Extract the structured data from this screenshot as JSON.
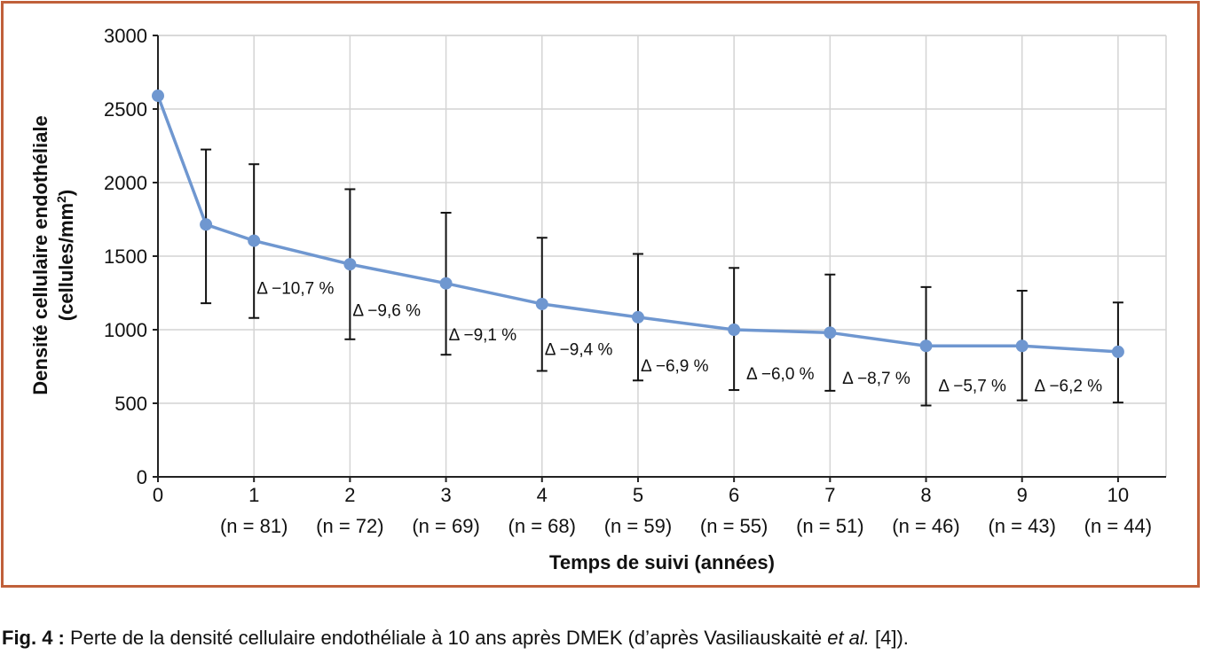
{
  "chart_data": {
    "type": "line",
    "ylabel_line1": "Densité cellulaire endothéliale",
    "ylabel_line2_prefix": "(cellules/mm",
    "ylabel_line2_sup": "2",
    "ylabel_line2_suffix": ")",
    "xlabel": "Temps de suivi (années)",
    "xlim": [
      0,
      10.5
    ],
    "ylim": [
      0,
      3000
    ],
    "yticks": [
      0,
      500,
      1000,
      1500,
      2000,
      2500,
      3000
    ],
    "grid": true,
    "line_color": "#6f97d0",
    "xticks": [
      {
        "x": 0,
        "label": "0",
        "n": ""
      },
      {
        "x": 1,
        "label": "1",
        "n": "(n = 81)"
      },
      {
        "x": 2,
        "label": "2",
        "n": "(n = 72)"
      },
      {
        "x": 3,
        "label": "3",
        "n": "(n = 69)"
      },
      {
        "x": 4,
        "label": "4",
        "n": "(n = 68)"
      },
      {
        "x": 5,
        "label": "5",
        "n": "(n = 59)"
      },
      {
        "x": 6,
        "label": "6",
        "n": "(n = 55)"
      },
      {
        "x": 7,
        "label": "7",
        "n": "(n = 51)"
      },
      {
        "x": 8,
        "label": "8",
        "n": "(n = 46)"
      },
      {
        "x": 9,
        "label": "9",
        "n": "(n = 43)"
      },
      {
        "x": 10,
        "label": "10",
        "n": "(n = 44)"
      }
    ],
    "points": [
      {
        "x": 0,
        "y": 2590
      },
      {
        "x": 0.5,
        "y": 1715,
        "err_low": 1180,
        "err_high": 2225
      },
      {
        "x": 1,
        "y": 1605,
        "err_low": 1080,
        "err_high": 2125
      },
      {
        "x": 2,
        "y": 1445,
        "err_low": 935,
        "err_high": 1955
      },
      {
        "x": 3,
        "y": 1315,
        "err_low": 830,
        "err_high": 1795
      },
      {
        "x": 4,
        "y": 1175,
        "err_low": 720,
        "err_high": 1625
      },
      {
        "x": 5,
        "y": 1085,
        "err_low": 655,
        "err_high": 1515
      },
      {
        "x": 6,
        "y": 1000,
        "err_low": 590,
        "err_high": 1420
      },
      {
        "x": 7,
        "y": 980,
        "err_low": 585,
        "err_high": 1375
      },
      {
        "x": 8,
        "y": 890,
        "err_low": 485,
        "err_high": 1290
      },
      {
        "x": 9,
        "y": 890,
        "err_low": 520,
        "err_high": 1265
      },
      {
        "x": 10,
        "y": 850,
        "err_low": 505,
        "err_high": 1185
      }
    ],
    "annotations": [
      {
        "text": "Δ −10,7 %",
        "x": 1.0,
        "y": 1285
      },
      {
        "text": "Δ −9,6 %",
        "x": 2.0,
        "y": 1135
      },
      {
        "text": "Δ −9,1 %",
        "x": 3.0,
        "y": 970
      },
      {
        "text": "Δ −9,4 %",
        "x": 4.0,
        "y": 870
      },
      {
        "text": "Δ −6,9 %",
        "x": 5.0,
        "y": 760
      },
      {
        "text": "Δ −6,0 %",
        "x": 6.1,
        "y": 705
      },
      {
        "text": "Δ −8,7 %",
        "x": 7.1,
        "y": 675
      },
      {
        "text": "Δ −5,7 %",
        "x": 8.1,
        "y": 625
      },
      {
        "text": "Δ −6,2 %",
        "x": 9.1,
        "y": 625
      }
    ]
  },
  "caption": {
    "label": "Fig. 4 :",
    "text_before": " Perte de la densité cellulaire endothéliale à 10 ans après DMEK (d’après Vasiliauskaitė ",
    "text_italic": "et al.",
    "text_after": " [4])."
  }
}
